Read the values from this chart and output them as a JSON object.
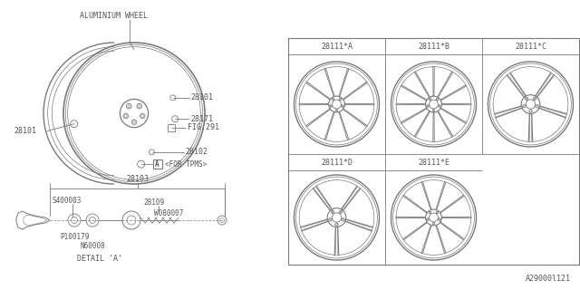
{
  "bg_color": "#ffffff",
  "line_color": "#7a7a7a",
  "text_color": "#555555",
  "title_text": "ALUMINIUM WHEEL",
  "part_numbers": {
    "28101_right": "28101",
    "28171": "28171",
    "fig291": "FIG.291",
    "28102": "28102",
    "for_tpms": "<FOR TPMS>",
    "28101_left": "28101",
    "28103": "28103",
    "s400003": "S400003",
    "28109": "28109",
    "w080007": "W080007",
    "p100179": "P100179",
    "n60008": "N60008",
    "detail_a": "DETAIL 'A'"
  },
  "wheel_labels": [
    "28111*A",
    "28111*B",
    "28111*C",
    "28111*D",
    "28111*E"
  ],
  "doc_number": "A29000l121"
}
